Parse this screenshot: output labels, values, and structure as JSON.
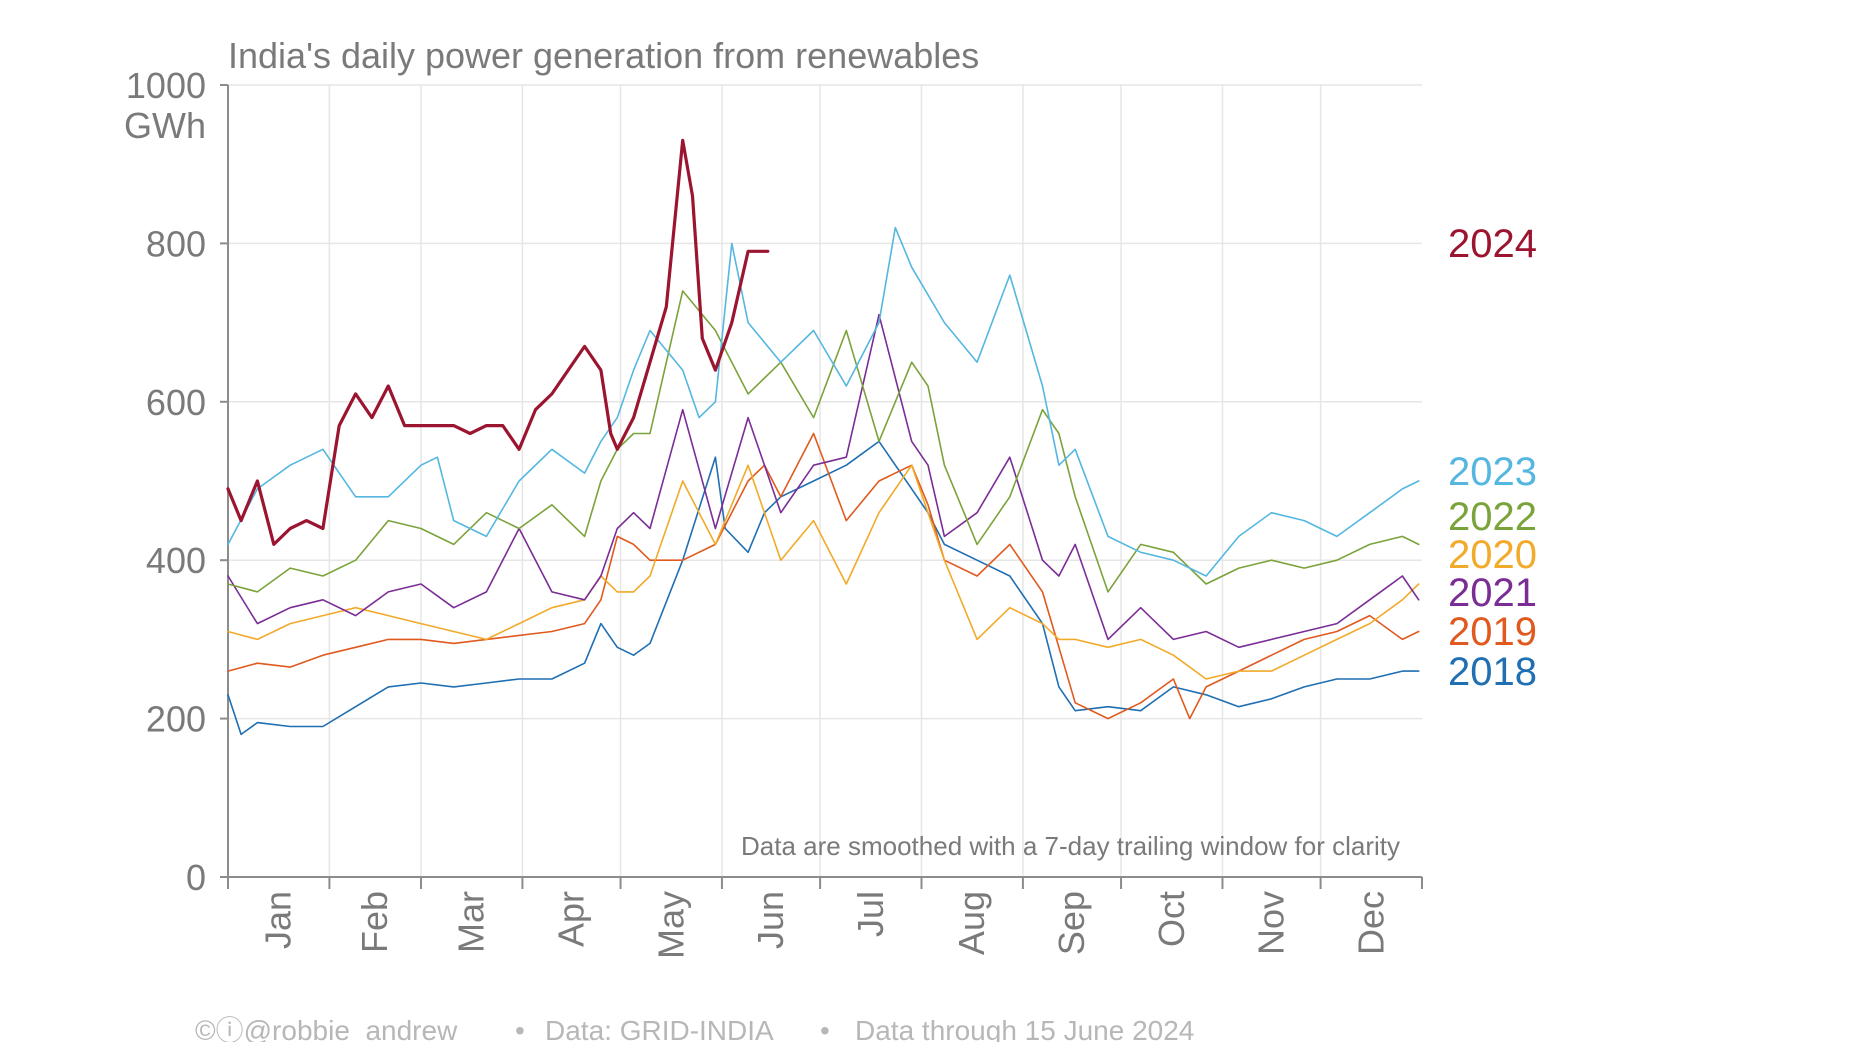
{
  "chart_data": {
    "type": "line",
    "title": "India's daily power generation from renewables",
    "y_unit": "GWh",
    "ylim": [
      0,
      1000
    ],
    "yticks": [
      0,
      200,
      400,
      600,
      800,
      1000
    ],
    "x_months": [
      "Jan",
      "Feb",
      "Mar",
      "Apr",
      "May",
      "Jun",
      "Jul",
      "Aug",
      "Sep",
      "Oct",
      "Nov",
      "Dec"
    ],
    "grid": true,
    "legend_position": "right",
    "note": "Data are smoothed with a 7-day trailing window for clarity",
    "series": [
      {
        "name": "2018",
        "color": "#1f6fb2",
        "width": 1.6,
        "x": [
          1,
          5,
          10,
          20,
          30,
          40,
          50,
          60,
          70,
          80,
          90,
          100,
          110,
          115,
          120,
          125,
          130,
          140,
          150,
          153,
          160,
          165,
          170,
          180,
          190,
          200,
          210,
          215,
          220,
          230,
          240,
          250,
          255,
          260,
          270,
          280,
          290,
          300,
          310,
          320,
          330,
          340,
          350,
          360,
          365
        ],
        "y": [
          230,
          180,
          195,
          190,
          190,
          215,
          240,
          245,
          240,
          245,
          250,
          250,
          270,
          320,
          290,
          280,
          295,
          400,
          530,
          440,
          410,
          460,
          480,
          500,
          520,
          550,
          490,
          460,
          420,
          400,
          380,
          320,
          240,
          210,
          215,
          210,
          240,
          230,
          215,
          225,
          240,
          250,
          250,
          260,
          260
        ]
      },
      {
        "name": "2019",
        "color": "#e05a1f",
        "width": 1.6,
        "x": [
          1,
          10,
          20,
          30,
          40,
          50,
          60,
          70,
          80,
          90,
          100,
          110,
          115,
          120,
          125,
          130,
          140,
          150,
          160,
          165,
          170,
          180,
          190,
          200,
          210,
          215,
          220,
          230,
          240,
          250,
          255,
          260,
          270,
          280,
          290,
          295,
          300,
          310,
          320,
          330,
          340,
          350,
          360,
          365
        ],
        "y": [
          260,
          270,
          265,
          280,
          290,
          300,
          300,
          295,
          300,
          305,
          310,
          320,
          350,
          430,
          420,
          400,
          400,
          420,
          500,
          520,
          480,
          560,
          450,
          500,
          520,
          470,
          400,
          380,
          420,
          360,
          290,
          220,
          200,
          220,
          250,
          200,
          240,
          260,
          280,
          300,
          310,
          330,
          300,
          310
        ]
      },
      {
        "name": "2020",
        "color": "#f2aa2a",
        "width": 1.6,
        "x": [
          1,
          10,
          20,
          30,
          40,
          50,
          60,
          70,
          80,
          90,
          100,
          110,
          115,
          120,
          125,
          130,
          140,
          150,
          160,
          170,
          180,
          190,
          200,
          210,
          215,
          220,
          230,
          240,
          250,
          255,
          260,
          270,
          280,
          290,
          300,
          310,
          320,
          330,
          340,
          350,
          360,
          365
        ],
        "y": [
          310,
          300,
          320,
          330,
          340,
          330,
          320,
          310,
          300,
          320,
          340,
          350,
          380,
          360,
          360,
          380,
          500,
          420,
          520,
          400,
          450,
          370,
          460,
          520,
          460,
          400,
          300,
          340,
          320,
          300,
          300,
          290,
          300,
          280,
          250,
          260,
          260,
          280,
          300,
          320,
          350,
          370
        ]
      },
      {
        "name": "2021",
        "color": "#7b2d96",
        "width": 1.6,
        "x": [
          1,
          10,
          20,
          30,
          40,
          50,
          60,
          70,
          80,
          90,
          95,
          100,
          110,
          115,
          120,
          125,
          130,
          140,
          150,
          160,
          170,
          180,
          190,
          200,
          210,
          215,
          220,
          230,
          240,
          250,
          255,
          260,
          270,
          280,
          290,
          300,
          310,
          320,
          330,
          340,
          350,
          360,
          365
        ],
        "y": [
          380,
          320,
          340,
          350,
          330,
          360,
          370,
          340,
          360,
          440,
          400,
          360,
          350,
          380,
          440,
          460,
          440,
          590,
          440,
          580,
          460,
          520,
          530,
          710,
          550,
          520,
          430,
          460,
          530,
          400,
          380,
          420,
          300,
          340,
          300,
          310,
          290,
          300,
          310,
          320,
          350,
          380,
          350
        ]
      },
      {
        "name": "2022",
        "color": "#7ba33b",
        "width": 1.6,
        "x": [
          1,
          10,
          20,
          30,
          40,
          50,
          60,
          70,
          80,
          90,
          100,
          110,
          115,
          120,
          125,
          130,
          140,
          150,
          160,
          170,
          180,
          190,
          200,
          210,
          215,
          220,
          230,
          240,
          250,
          255,
          260,
          270,
          280,
          290,
          300,
          310,
          320,
          330,
          340,
          350,
          360,
          365
        ],
        "y": [
          370,
          360,
          390,
          380,
          400,
          450,
          440,
          420,
          460,
          440,
          470,
          430,
          500,
          540,
          560,
          560,
          740,
          690,
          610,
          650,
          580,
          690,
          550,
          650,
          620,
          520,
          420,
          480,
          590,
          560,
          480,
          360,
          420,
          410,
          370,
          390,
          400,
          390,
          400,
          420,
          430,
          420
        ]
      },
      {
        "name": "2023",
        "color": "#55b7e0",
        "width": 1.6,
        "x": [
          1,
          10,
          20,
          30,
          40,
          50,
          60,
          65,
          70,
          80,
          90,
          100,
          110,
          115,
          120,
          125,
          130,
          140,
          145,
          150,
          155,
          160,
          170,
          180,
          190,
          200,
          205,
          210,
          220,
          230,
          240,
          250,
          255,
          260,
          270,
          280,
          290,
          300,
          310,
          320,
          330,
          340,
          350,
          360,
          365
        ],
        "y": [
          420,
          490,
          520,
          540,
          480,
          480,
          520,
          530,
          450,
          430,
          500,
          540,
          510,
          550,
          580,
          640,
          690,
          640,
          580,
          600,
          800,
          700,
          650,
          690,
          620,
          700,
          820,
          770,
          700,
          650,
          760,
          620,
          520,
          540,
          430,
          410,
          400,
          380,
          430,
          460,
          450,
          430,
          460,
          490,
          500
        ]
      },
      {
        "name": "2024",
        "color": "#9b1430",
        "width": 3.2,
        "x": [
          1,
          5,
          10,
          15,
          20,
          25,
          30,
          35,
          40,
          45,
          50,
          55,
          60,
          65,
          70,
          75,
          80,
          85,
          90,
          95,
          100,
          105,
          110,
          115,
          118,
          120,
          125,
          130,
          135,
          140,
          143,
          146,
          150,
          155,
          160,
          163,
          166
        ],
        "y": [
          490,
          450,
          500,
          420,
          440,
          450,
          440,
          570,
          610,
          580,
          620,
          570,
          570,
          570,
          570,
          560,
          570,
          570,
          540,
          590,
          610,
          640,
          670,
          640,
          560,
          540,
          580,
          650,
          720,
          930,
          860,
          680,
          640,
          700,
          790,
          790,
          790
        ]
      }
    ]
  },
  "footer": {
    "credit": "©ⓘ@robbie_andrew",
    "source": "Data: GRID-INDIA",
    "through": "Data through 15 June 2024",
    "separator": "•"
  }
}
